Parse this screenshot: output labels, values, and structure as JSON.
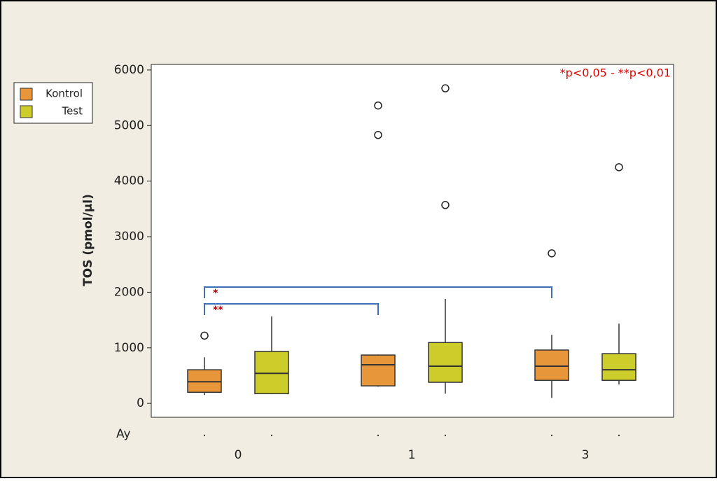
{
  "chart_data": {
    "type": "box",
    "y_label": "TOS (pmol/µl)",
    "x_label": "Ay",
    "note": "*p<0,05 - **p<0,01",
    "categories": [
      "0",
      "1",
      "3"
    ],
    "ylim": [
      -250,
      6100
    ],
    "yticks": [
      0,
      1000,
      2000,
      3000,
      4000,
      5000,
      6000
    ],
    "legend": "top-left",
    "series": [
      {
        "name": "Kontrol",
        "color": "#e8963a",
        "tick_labels": [
          ".",
          ".",
          "."
        ],
        "boxes": [
          {
            "min": 150,
            "q1": 200,
            "median": 390,
            "q3": 605,
            "max": 830,
            "outliers": [
              1220
            ]
          },
          {
            "min": 300,
            "q1": 315,
            "median": 695,
            "q3": 870,
            "max": 880,
            "outliers": [
              5360,
              4830
            ]
          },
          {
            "min": 100,
            "q1": 415,
            "median": 670,
            "q3": 960,
            "max": 1235,
            "outliers": [
              2700
            ]
          }
        ]
      },
      {
        "name": "Test",
        "color": "#cccc2a",
        "tick_labels": [
          ".",
          ".",
          "."
        ],
        "boxes": [
          {
            "min": 165,
            "q1": 175,
            "median": 540,
            "q3": 935,
            "max": 1565,
            "outliers": []
          },
          {
            "min": 175,
            "q1": 380,
            "median": 670,
            "q3": 1095,
            "max": 1880,
            "outliers": [
              5670,
              3570
            ]
          },
          {
            "min": 340,
            "q1": 415,
            "median": 605,
            "q3": 895,
            "max": 1435,
            "outliers": [
              4250
            ]
          }
        ]
      }
    ],
    "annotations": [
      "*",
      "**"
    ]
  }
}
